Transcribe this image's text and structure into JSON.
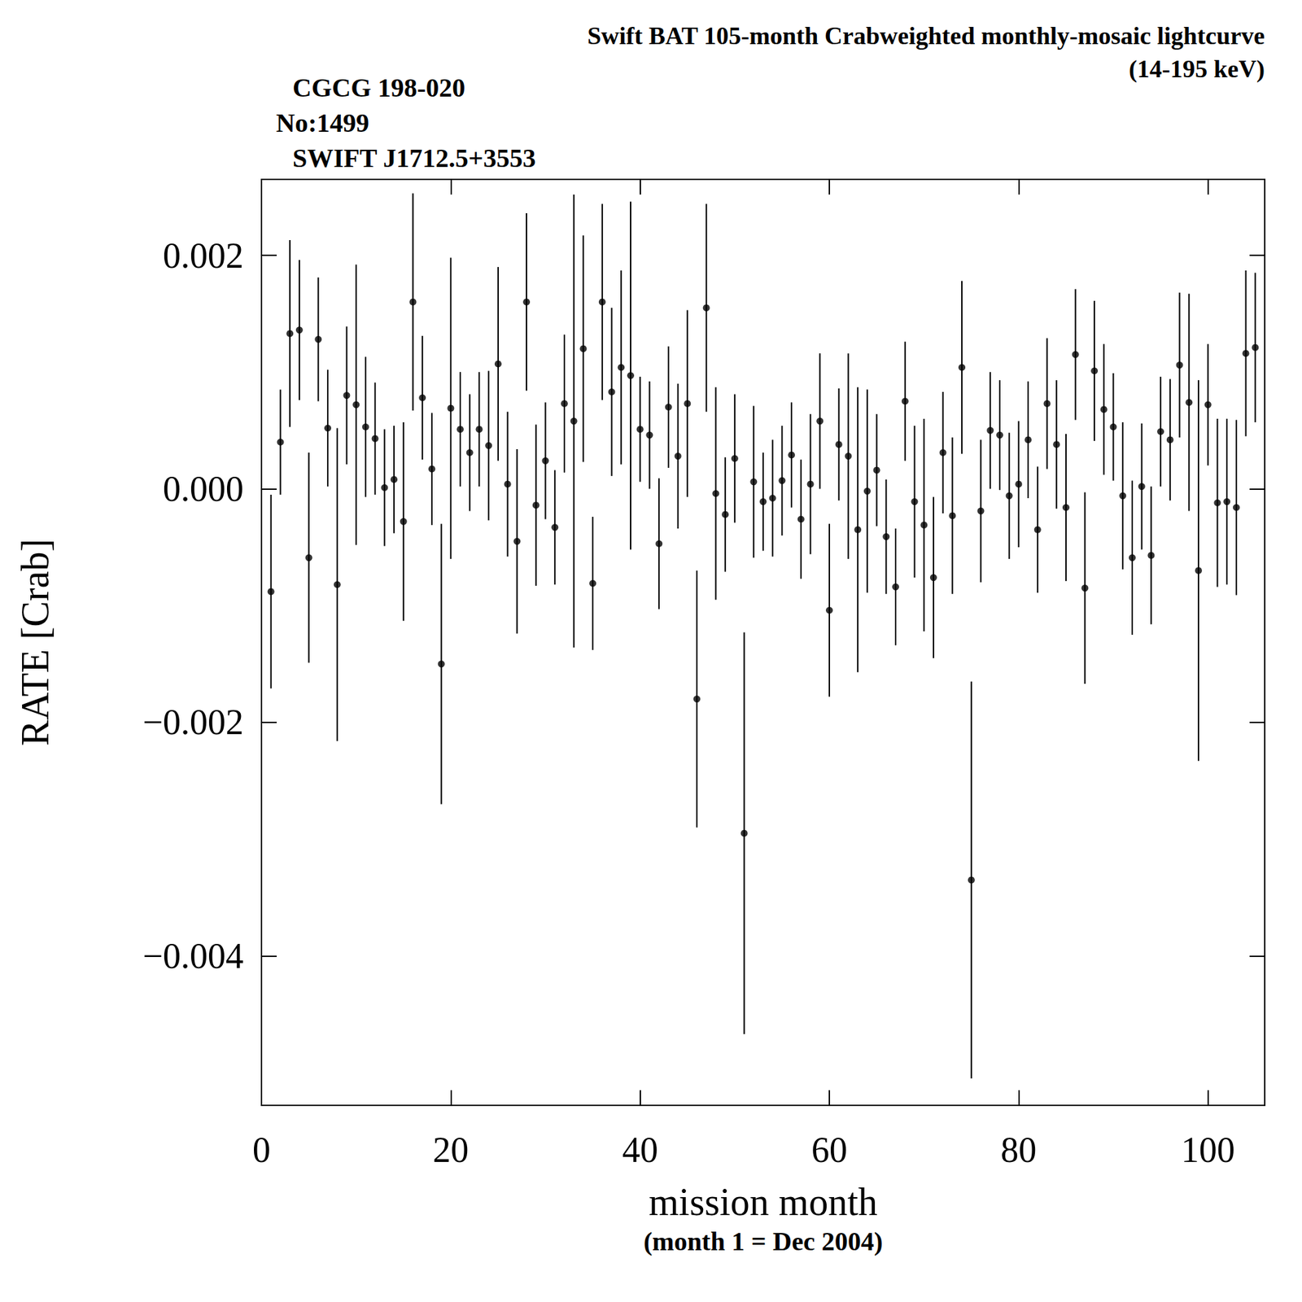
{
  "chart_data": {
    "type": "scatter",
    "title": "Swift BAT 105-month Crabweighted monthly-mosaic lightcurve",
    "subtitle": "(14-195 keV)",
    "annotations": [
      "CGCG 198-020",
      "No:1499",
      "SWIFT J1712.5+3553"
    ],
    "x_label": "mission month",
    "x_sublabel": "(month 1 = Dec 2004)",
    "y_label": "RATE [Crab]",
    "color": "#000000",
    "marker": "circle",
    "grid": false,
    "xlim": [
      0,
      106
    ],
    "ylim": [
      -0.00528,
      0.00265
    ],
    "xticks": [
      0,
      20,
      40,
      60,
      80,
      100
    ],
    "yticks": [
      {
        "value": -0.004,
        "label": "−0.004"
      },
      {
        "value": -0.002,
        "label": "−0.002"
      },
      {
        "value": 0,
        "label": "0.000"
      },
      {
        "value": 0.002,
        "label": "0.002"
      }
    ],
    "x": [
      1,
      2,
      3,
      4,
      5,
      6,
      7,
      8,
      9,
      10,
      11,
      12,
      13,
      14,
      15,
      16,
      17,
      18,
      19,
      20,
      21,
      22,
      23,
      24,
      25,
      26,
      27,
      28,
      29,
      30,
      31,
      32,
      33,
      34,
      35,
      36,
      37,
      38,
      39,
      40,
      41,
      42,
      43,
      44,
      45,
      46,
      47,
      48,
      49,
      50,
      51,
      52,
      53,
      54,
      55,
      56,
      57,
      58,
      59,
      60,
      61,
      62,
      63,
      64,
      65,
      66,
      67,
      68,
      69,
      70,
      71,
      72,
      73,
      74,
      75,
      76,
      77,
      78,
      79,
      80,
      81,
      82,
      83,
      84,
      85,
      86,
      87,
      88,
      89,
      90,
      91,
      92,
      93,
      94,
      95,
      96,
      97,
      98,
      99,
      100,
      101,
      102,
      103,
      104,
      105
    ],
    "values": [
      -0.00088,
      0.0004,
      0.00133,
      0.00136,
      -0.00059,
      0.00128,
      0.00052,
      -0.00082,
      0.0008,
      0.00072,
      0.00053,
      0.00043,
      1e-05,
      8e-05,
      -0.00028,
      0.0016,
      0.00078,
      0.00017,
      -0.0015,
      0.00069,
      0.00051,
      0.00031,
      0.00051,
      0.00037,
      0.00107,
      4e-05,
      -0.00045,
      0.0016,
      -0.00014,
      0.00024,
      -0.00033,
      0.00073,
      0.00058,
      0.0012,
      -0.00081,
      0.0016,
      0.00083,
      0.00104,
      0.00097,
      0.00051,
      0.00046,
      -0.00047,
      0.0007,
      0.00028,
      0.00073,
      -0.0018,
      0.00155,
      -4e-05,
      -0.00022,
      0.00026,
      -0.00295,
      6e-05,
      -0.00011,
      -8e-05,
      7e-05,
      0.00029,
      -0.00026,
      4e-05,
      0.00058,
      -0.00104,
      0.00038,
      0.00028,
      -0.00035,
      -2e-05,
      0.00016,
      -0.00041,
      -0.00084,
      0.00075,
      -0.00011,
      -0.00031,
      -0.00076,
      0.00031,
      -0.00023,
      0.00104,
      -0.00335,
      -0.00019,
      0.0005,
      0.00046,
      -6e-05,
      4e-05,
      0.00042,
      -0.00035,
      0.00073,
      0.00038,
      -0.00016,
      0.00115,
      -0.00085,
      0.00101,
      0.00068,
      0.00053,
      -6e-05,
      -0.00059,
      2e-05,
      -0.00057,
      0.00049,
      0.00042,
      0.00106,
      0.00074,
      -0.0007,
      0.00072,
      -0.00012,
      -0.00011,
      -0.00016,
      0.00116,
      0.00121
    ],
    "errors": [
      0.00083,
      0.00045,
      0.0008,
      0.0006,
      0.0009,
      0.00053,
      0.0005,
      0.00134,
      0.00059,
      0.0012,
      0.0006,
      0.00048,
      0.0005,
      0.00046,
      0.00085,
      0.00093,
      0.00053,
      0.00048,
      0.0012,
      0.00129,
      0.00049,
      0.0005,
      0.00049,
      0.00064,
      0.00083,
      0.00062,
      0.00079,
      0.00076,
      0.00069,
      0.0005,
      0.00049,
      0.00059,
      0.00194,
      0.00097,
      0.00057,
      0.00084,
      0.00072,
      0.00083,
      0.00149,
      0.00045,
      0.00046,
      0.00056,
      0.00052,
      0.00062,
      0.0008,
      0.0011,
      0.00089,
      0.00091,
      0.00049,
      0.00055,
      0.00172,
      0.00065,
      0.00042,
      0.0005,
      0.00047,
      0.00045,
      0.00051,
      0.0006,
      0.00058,
      0.00074,
      0.00048,
      0.00088,
      0.00122,
      0.00087,
      0.00048,
      0.00049,
      0.0005,
      0.00051,
      0.00065,
      0.00091,
      0.00069,
      0.00052,
      0.00067,
      0.00074,
      0.0017,
      0.00061,
      0.0005,
      0.00047,
      0.00054,
      0.00054,
      0.0005,
      0.00054,
      0.00056,
      0.00055,
      0.00063,
      0.00056,
      0.00082,
      0.0006,
      0.00056,
      0.00046,
      0.00063,
      0.00066,
      0.00054,
      0.00059,
      0.00047,
      0.00052,
      0.00062,
      0.00093,
      0.00163,
      0.00052,
      0.00072,
      0.00071,
      0.00075,
      0.00071,
      0.00064
    ]
  }
}
